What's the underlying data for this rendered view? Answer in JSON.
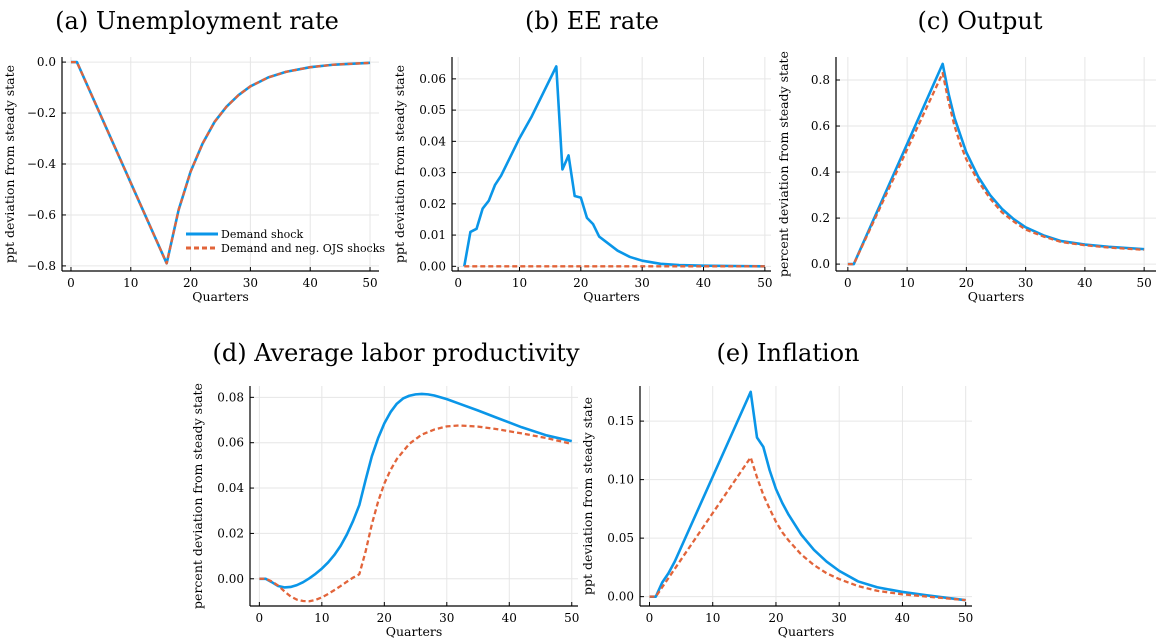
{
  "colors": {
    "series1": "#0a96e8",
    "series2": "#e2643a",
    "grid": "#e6e6e6"
  },
  "legend": {
    "placement": "bottom-right-of-first-panel",
    "entries": [
      "Demand shock",
      "Demand and neg. OJS shocks"
    ]
  },
  "chart_data": [
    {
      "panel": "a",
      "type": "line",
      "title": "(a) Unemployment rate",
      "xlabel": "Quarters",
      "ylabel": "ppt deviation from steady state",
      "xlim": [
        -1.5,
        51.5
      ],
      "ylim": [
        -0.82,
        0.02
      ],
      "xticks": [
        0,
        10,
        20,
        30,
        40,
        50
      ],
      "yticks": [
        0.0,
        -0.2,
        -0.4,
        -0.6,
        -0.8
      ],
      "ytick_labels": [
        "0.0",
        "−0.2",
        "−0.4",
        "−0.6",
        "−0.8"
      ],
      "grid": true,
      "show_legend": true,
      "series": [
        {
          "name": "Demand shock",
          "style": "solid",
          "x": [
            0,
            1,
            16,
            18,
            20,
            22,
            24,
            26,
            28,
            30,
            33,
            36,
            40,
            44,
            50
          ],
          "y": [
            0,
            0,
            -0.79,
            -0.58,
            -0.43,
            -0.32,
            -0.235,
            -0.175,
            -0.13,
            -0.095,
            -0.06,
            -0.038,
            -0.02,
            -0.01,
            -0.003
          ]
        },
        {
          "name": "Demand and neg. OJS shocks",
          "style": "dashed",
          "x": [
            0,
            1,
            16,
            18,
            20,
            22,
            24,
            26,
            28,
            30,
            33,
            36,
            40,
            44,
            50
          ],
          "y": [
            0,
            0,
            -0.79,
            -0.58,
            -0.43,
            -0.32,
            -0.235,
            -0.175,
            -0.13,
            -0.095,
            -0.06,
            -0.038,
            -0.02,
            -0.01,
            -0.003
          ]
        }
      ]
    },
    {
      "panel": "b",
      "type": "line",
      "title": "(b) EE rate",
      "xlabel": "Quarters",
      "ylabel": "ppt deviation from steady state",
      "xlim": [
        -1,
        51
      ],
      "ylim": [
        -0.0015,
        0.067
      ],
      "xticks": [
        0,
        10,
        20,
        30,
        40,
        50
      ],
      "yticks": [
        0.0,
        0.01,
        0.02,
        0.03,
        0.04,
        0.05,
        0.06
      ],
      "ytick_labels": [
        "0.00",
        "0.01",
        "0.02",
        "0.03",
        "0.04",
        "0.05",
        "0.06"
      ],
      "grid": true,
      "show_legend": false,
      "series": [
        {
          "name": "Demand shock",
          "style": "solid",
          "x": [
            1,
            2,
            3,
            4,
            5,
            6,
            7,
            8,
            10,
            12,
            14,
            16,
            17,
            18,
            19,
            20,
            21,
            22,
            23,
            24,
            26,
            28,
            30,
            33,
            36,
            40,
            45,
            50
          ],
          "y": [
            0,
            0.011,
            0.012,
            0.0185,
            0.021,
            0.026,
            0.029,
            0.033,
            0.041,
            0.048,
            0.056,
            0.064,
            0.031,
            0.0355,
            0.0225,
            0.022,
            0.0155,
            0.0135,
            0.0095,
            0.008,
            0.005,
            0.003,
            0.0018,
            0.0008,
            0.0004,
            0.0002,
            0.0001,
            0.0
          ]
        },
        {
          "name": "Demand and neg. OJS shocks",
          "style": "dashed",
          "x": [
            1,
            50
          ],
          "y": [
            0,
            0
          ]
        }
      ]
    },
    {
      "panel": "c",
      "type": "line",
      "title": "(c) Output",
      "xlabel": "Quarters",
      "ylabel": "percent deviation from steady state",
      "xlim": [
        -2,
        52
      ],
      "ylim": [
        -0.03,
        0.9
      ],
      "xticks": [
        0,
        10,
        20,
        30,
        40,
        50
      ],
      "yticks": [
        0.0,
        0.2,
        0.4,
        0.6,
        0.8
      ],
      "ytick_labels": [
        "0.0",
        "0.2",
        "0.4",
        "0.6",
        "0.8"
      ],
      "grid": true,
      "show_legend": false,
      "series": [
        {
          "name": "Demand shock",
          "style": "solid",
          "x": [
            0,
            1,
            16,
            17,
            18,
            19,
            20,
            22,
            24,
            26,
            28,
            30,
            33,
            36,
            40,
            44,
            50
          ],
          "y": [
            0,
            0,
            0.87,
            0.74,
            0.635,
            0.56,
            0.485,
            0.38,
            0.3,
            0.24,
            0.195,
            0.16,
            0.125,
            0.1,
            0.085,
            0.075,
            0.065
          ]
        },
        {
          "name": "Demand and neg. OJS shocks",
          "style": "dashed",
          "x": [
            0,
            1,
            16,
            17,
            18,
            19,
            20,
            22,
            24,
            26,
            28,
            30,
            33,
            36,
            40,
            44,
            50
          ],
          "y": [
            0,
            0,
            0.83,
            0.705,
            0.6,
            0.52,
            0.455,
            0.36,
            0.285,
            0.225,
            0.185,
            0.15,
            0.12,
            0.096,
            0.082,
            0.072,
            0.062
          ]
        }
      ]
    },
    {
      "panel": "d",
      "type": "line",
      "title": "(d) Average labor productivity",
      "xlabel": "Quarters",
      "ylabel": "percent deviation from steady state",
      "xlim": [
        -1.5,
        51
      ],
      "ylim": [
        -0.012,
        0.085
      ],
      "xticks": [
        0,
        10,
        20,
        30,
        40,
        50
      ],
      "yticks": [
        0.0,
        0.02,
        0.04,
        0.06,
        0.08
      ],
      "ytick_labels": [
        "0.00",
        "0.02",
        "0.04",
        "0.06",
        "0.08"
      ],
      "grid": true,
      "show_legend": false,
      "series": [
        {
          "name": "Demand shock",
          "style": "solid",
          "x": [
            0,
            1,
            2,
            3,
            4,
            5,
            6,
            7,
            8,
            9,
            10,
            11,
            12,
            13,
            14,
            15,
            16,
            17,
            18,
            19,
            20,
            21,
            22,
            23,
            24,
            25,
            26,
            27,
            28,
            30,
            32,
            35,
            38,
            42,
            46,
            50
          ],
          "y": [
            0,
            0,
            -0.0015,
            -0.0032,
            -0.0038,
            -0.0036,
            -0.0028,
            -0.0015,
            0.0002,
            0.0022,
            0.0045,
            0.0072,
            0.0105,
            0.0145,
            0.0195,
            0.0255,
            0.0325,
            0.0435,
            0.054,
            0.062,
            0.0685,
            0.0735,
            0.0772,
            0.0795,
            0.0807,
            0.0813,
            0.0815,
            0.0813,
            0.0808,
            0.0792,
            0.0772,
            0.0742,
            0.071,
            0.0668,
            0.0632,
            0.0607
          ]
        },
        {
          "name": "Demand and neg. OJS shocks",
          "style": "dashed",
          "x": [
            0,
            1,
            2,
            3,
            4,
            5,
            6,
            7,
            8,
            9,
            10,
            11,
            12,
            13,
            14,
            15,
            16,
            17,
            18,
            19,
            20,
            21,
            22,
            24,
            26,
            28,
            30,
            32,
            35,
            38,
            42,
            46,
            50
          ],
          "y": [
            0,
            0,
            -0.0012,
            -0.003,
            -0.0055,
            -0.0078,
            -0.0092,
            -0.0098,
            -0.0099,
            -0.0093,
            -0.0082,
            -0.0067,
            -0.005,
            -0.0032,
            -0.0013,
            0.0005,
            0.002,
            0.012,
            0.024,
            0.034,
            0.042,
            0.048,
            0.0528,
            0.0595,
            0.0636,
            0.0658,
            0.0672,
            0.0676,
            0.0671,
            0.066,
            0.0641,
            0.062,
            0.0595
          ]
        }
      ]
    },
    {
      "panel": "e",
      "type": "line",
      "title": "(e) Inflation",
      "xlabel": "Quarters",
      "ylabel": "ppt deviation from steady state",
      "xlim": [
        -1.5,
        51
      ],
      "ylim": [
        -0.008,
        0.18
      ],
      "xticks": [
        0,
        10,
        20,
        30,
        40,
        50
      ],
      "yticks": [
        0.0,
        0.05,
        0.1,
        0.15
      ],
      "ytick_labels": [
        "0.00",
        "0.05",
        "0.10",
        "0.15"
      ],
      "grid": true,
      "show_legend": false,
      "series": [
        {
          "name": "Demand shock",
          "style": "solid",
          "x": [
            0,
            1,
            2,
            3,
            4,
            16,
            17,
            18,
            19,
            20,
            21,
            22,
            24,
            26,
            28,
            30,
            33,
            36,
            40,
            44,
            50
          ],
          "y": [
            0,
            0,
            0.012,
            0.02,
            0.03,
            0.175,
            0.136,
            0.128,
            0.108,
            0.092,
            0.08,
            0.07,
            0.053,
            0.04,
            0.03,
            0.022,
            0.013,
            0.008,
            0.004,
            0.001,
            -0.003
          ]
        },
        {
          "name": "Demand and neg. OJS shocks",
          "style": "dashed",
          "x": [
            0,
            1,
            16,
            17,
            18,
            19,
            20,
            21,
            22,
            24,
            26,
            28,
            30,
            33,
            36,
            40,
            44,
            50
          ],
          "y": [
            0,
            0,
            0.119,
            0.102,
            0.087,
            0.075,
            0.064,
            0.055,
            0.048,
            0.036,
            0.027,
            0.02,
            0.015,
            0.009,
            0.005,
            0.002,
            0.0,
            -0.003
          ]
        }
      ]
    }
  ]
}
